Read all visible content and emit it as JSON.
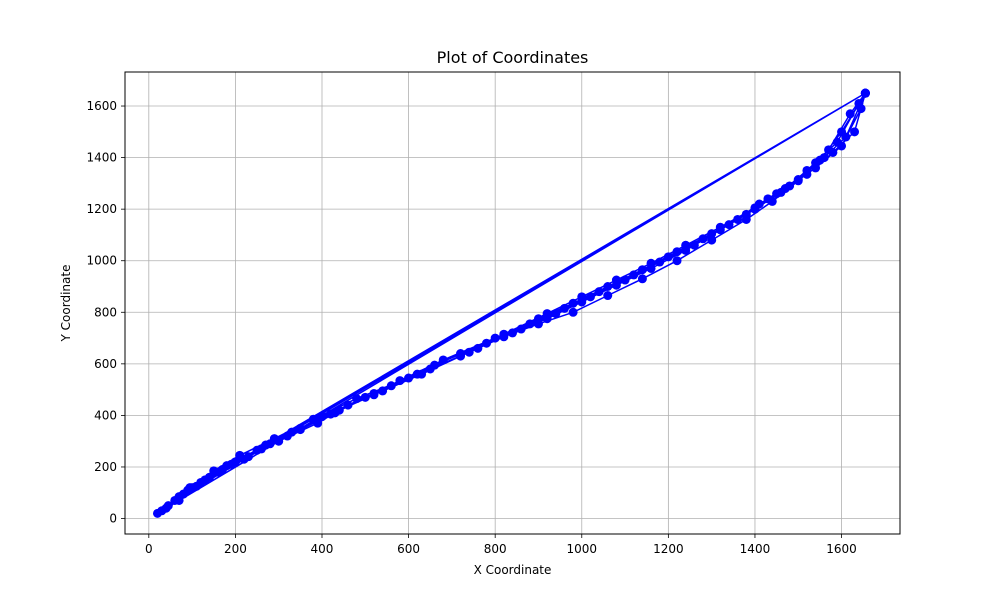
{
  "chart_data": {
    "type": "line",
    "title": "Plot of Coordinates",
    "xlabel": "X Coordinate",
    "ylabel": "Y Coordinate",
    "xlim": [
      -55,
      1735
    ],
    "ylim": [
      -60,
      1732
    ],
    "xticks": [
      0,
      200,
      400,
      600,
      800,
      1000,
      1200,
      1400,
      1600
    ],
    "yticks": [
      0,
      200,
      400,
      600,
      800,
      1000,
      1200,
      1400,
      1600
    ],
    "grid": true,
    "marker": "circle",
    "series": [
      {
        "color": "#0000ff",
        "x": [
          20,
          45,
          95,
          150,
          210,
          290,
          380,
          480,
          600,
          720,
          820,
          900,
          980,
          1060,
          1140,
          1220,
          1300,
          1380,
          1440,
          1500,
          1550,
          1600,
          1655,
          30,
          70,
          120,
          180,
          250,
          330,
          420,
          520,
          630,
          740,
          840,
          920,
          1000,
          1080,
          1160,
          1240,
          1320,
          1400,
          1460,
          1520,
          1570,
          1620,
          1655,
          40,
          90,
          140,
          200,
          270,
          350,
          440,
          540,
          650,
          760,
          860,
          940,
          1020,
          1100,
          1180,
          1260,
          1340,
          1410,
          1480,
          1540,
          1590,
          1640,
          1655,
          60,
          110,
          170,
          230,
          300,
          390,
          460,
          560,
          660,
          780,
          880,
          960,
          1040,
          1120,
          1200,
          1280,
          1360,
          1430,
          1500,
          1560,
          1610,
          1655,
          80,
          130,
          190,
          260,
          320,
          400,
          500,
          580,
          680,
          800,
          900,
          980,
          1060,
          1140,
          1220,
          1300,
          1380,
          1450,
          1520,
          1580,
          1630,
          1655,
          100,
          160,
          220,
          280,
          350,
          430,
          520,
          620,
          720,
          820,
          920,
          1000,
          1080,
          1160,
          1240,
          1320,
          1400,
          1470,
          1540,
          1600,
          1645,
          1655,
          70
        ],
        "y": [
          20,
          50,
          120,
          185,
          245,
          310,
          385,
          465,
          545,
          630,
          705,
          755,
          800,
          865,
          930,
          1000,
          1080,
          1160,
          1230,
          1310,
          1390,
          1500,
          1650,
          30,
          85,
          140,
          205,
          265,
          335,
          405,
          480,
          560,
          645,
          720,
          775,
          840,
          905,
          970,
          1040,
          1120,
          1200,
          1265,
          1350,
          1430,
          1570,
          1650,
          40,
          110,
          160,
          220,
          285,
          350,
          420,
          495,
          580,
          660,
          735,
          795,
          860,
          925,
          995,
          1060,
          1140,
          1220,
          1290,
          1380,
          1460,
          1610,
          1650,
          70,
          125,
          190,
          240,
          300,
          370,
          440,
          515,
          595,
          680,
          755,
          815,
          880,
          945,
          1015,
          1085,
          1160,
          1240,
          1315,
          1400,
          1480,
          1650,
          95,
          150,
          210,
          270,
          320,
          395,
          470,
          535,
          615,
          700,
          775,
          835,
          900,
          965,
          1035,
          1105,
          1180,
          1260,
          1335,
          1420,
          1500,
          1650,
          120,
          180,
          230,
          290,
          345,
          410,
          485,
          560,
          640,
          715,
          795,
          860,
          925,
          990,
          1060,
          1130,
          1205,
          1280,
          1360,
          1445,
          1590,
          1650,
          70
        ]
      }
    ]
  }
}
